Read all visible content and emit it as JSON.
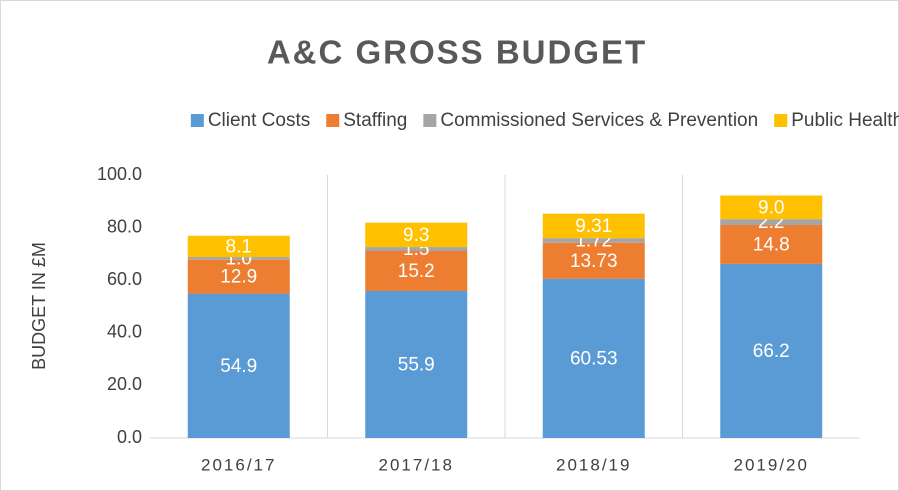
{
  "chart_data": {
    "type": "stacked_bar",
    "title": "A&C GROSS BUDGET",
    "y_label": "BUDGET IN £M",
    "categories": [
      "2016/17",
      "2017/18",
      "2018/19",
      "2019/20"
    ],
    "series": [
      {
        "name": "Client Costs",
        "color": "#5b9bd5",
        "values": [
          54.9,
          55.9,
          60.53,
          66.2
        ]
      },
      {
        "name": "Staffing",
        "color": "#ed7d31",
        "values": [
          12.9,
          15.2,
          13.73,
          14.8
        ]
      },
      {
        "name": "Commissioned Services & Prevention",
        "color": "#a5a5a5",
        "values": [
          1.0,
          1.5,
          1.72,
          2.2
        ],
        "value_labels": [
          "1.0",
          "1.5",
          "1.72",
          "2.2"
        ]
      },
      {
        "name": "Public Health",
        "color": "#ffc000",
        "values": [
          8.1,
          9.3,
          9.31,
          9.0
        ],
        "value_labels": [
          "8.1",
          "9.3",
          "9.31",
          "9.0"
        ]
      }
    ],
    "ylim": [
      0,
      100
    ],
    "yticks": [
      {
        "value": 0,
        "label": "0.0"
      },
      {
        "value": 20,
        "label": "20.0"
      },
      {
        "value": 40,
        "label": "40.0"
      },
      {
        "value": 60,
        "label": "60.0"
      },
      {
        "value": 80,
        "label": "80.0"
      },
      {
        "value": 100,
        "label": "100.0"
      }
    ],
    "legend": "top"
  }
}
